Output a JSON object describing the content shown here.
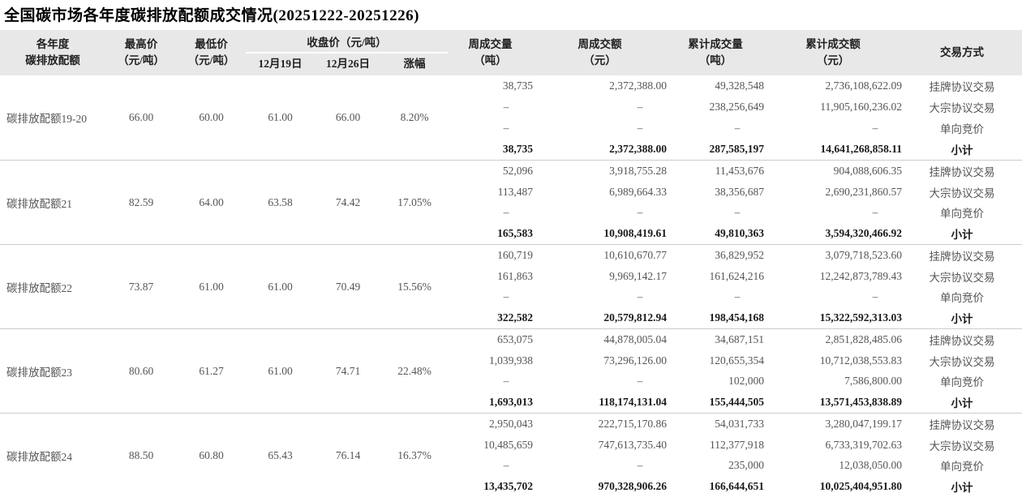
{
  "chart_data": {
    "type": "table",
    "title": "全国碳市场各年度碳排放配额成交情况(20251222-20251226)",
    "header": {
      "allowance": [
        "各年度",
        "碳排放配额"
      ],
      "high": [
        "最高价",
        "（元/吨）"
      ],
      "low": [
        "最低价",
        "（元/吨）"
      ],
      "close_group": "收盘价（元/吨）",
      "date1": "12月19日",
      "date2": "12月26日",
      "change": "涨幅",
      "week_vol": [
        "周成交量",
        "（吨）"
      ],
      "week_amt": [
        "周成交额",
        "（元）"
      ],
      "cum_vol": [
        "累计成交量",
        "（吨）"
      ],
      "cum_amt": [
        "累计成交额",
        "（元）"
      ],
      "method": "交易方式"
    },
    "groups": [
      {
        "name": "碳排放配额19-20",
        "high": "66.00",
        "low": "60.00",
        "close_1219": "61.00",
        "close_1226": "66.00",
        "change": "8.20%",
        "rows": [
          {
            "week_vol": "38,735",
            "week_amt": "2,372,388.00",
            "cum_vol": "49,328,548",
            "cum_amt": "2,736,108,622.09",
            "method": "挂牌协议交易"
          },
          {
            "week_vol": "–",
            "week_amt": "–",
            "cum_vol": "238,256,649",
            "cum_amt": "11,905,160,236.02",
            "method": "大宗协议交易"
          },
          {
            "week_vol": "–",
            "week_amt": "–",
            "cum_vol": "–",
            "cum_amt": "–",
            "method": "单向竞价"
          },
          {
            "week_vol": "38,735",
            "week_amt": "2,372,388.00",
            "cum_vol": "287,585,197",
            "cum_amt": "14,641,268,858.11",
            "method": "小计"
          }
        ]
      },
      {
        "name": "碳排放配额21",
        "high": "82.59",
        "low": "64.00",
        "close_1219": "63.58",
        "close_1226": "74.42",
        "change": "17.05%",
        "rows": [
          {
            "week_vol": "52,096",
            "week_amt": "3,918,755.28",
            "cum_vol": "11,453,676",
            "cum_amt": "904,088,606.35",
            "method": "挂牌协议交易"
          },
          {
            "week_vol": "113,487",
            "week_amt": "6,989,664.33",
            "cum_vol": "38,356,687",
            "cum_amt": "2,690,231,860.57",
            "method": "大宗协议交易"
          },
          {
            "week_vol": "–",
            "week_amt": "–",
            "cum_vol": "–",
            "cum_amt": "–",
            "method": "单向竞价"
          },
          {
            "week_vol": "165,583",
            "week_amt": "10,908,419.61",
            "cum_vol": "49,810,363",
            "cum_amt": "3,594,320,466.92",
            "method": "小计"
          }
        ]
      },
      {
        "name": "碳排放配额22",
        "high": "73.87",
        "low": "61.00",
        "close_1219": "61.00",
        "close_1226": "70.49",
        "change": "15.56%",
        "rows": [
          {
            "week_vol": "160,719",
            "week_amt": "10,610,670.77",
            "cum_vol": "36,829,952",
            "cum_amt": "3,079,718,523.60",
            "method": "挂牌协议交易"
          },
          {
            "week_vol": "161,863",
            "week_amt": "9,969,142.17",
            "cum_vol": "161,624,216",
            "cum_amt": "12,242,873,789.43",
            "method": "大宗协议交易"
          },
          {
            "week_vol": "–",
            "week_amt": "–",
            "cum_vol": "–",
            "cum_amt": "–",
            "method": "单向竞价"
          },
          {
            "week_vol": "322,582",
            "week_amt": "20,579,812.94",
            "cum_vol": "198,454,168",
            "cum_amt": "15,322,592,313.03",
            "method": "小计"
          }
        ]
      },
      {
        "name": "碳排放配额23",
        "high": "80.60",
        "low": "61.27",
        "close_1219": "61.00",
        "close_1226": "74.71",
        "change": "22.48%",
        "rows": [
          {
            "week_vol": "653,075",
            "week_amt": "44,878,005.04",
            "cum_vol": "34,687,151",
            "cum_amt": "2,851,828,485.06",
            "method": "挂牌协议交易"
          },
          {
            "week_vol": "1,039,938",
            "week_amt": "73,296,126.00",
            "cum_vol": "120,655,354",
            "cum_amt": "10,712,038,553.83",
            "method": "大宗协议交易"
          },
          {
            "week_vol": "–",
            "week_amt": "–",
            "cum_vol": "102,000",
            "cum_amt": "7,586,800.00",
            "method": "单向竞价"
          },
          {
            "week_vol": "1,693,013",
            "week_amt": "118,174,131.04",
            "cum_vol": "155,444,505",
            "cum_amt": "13,571,453,838.89",
            "method": "小计"
          }
        ]
      },
      {
        "name": "碳排放配额24",
        "high": "88.50",
        "low": "60.80",
        "close_1219": "65.43",
        "close_1226": "76.14",
        "change": "16.37%",
        "rows": [
          {
            "week_vol": "2,950,043",
            "week_amt": "222,715,170.86",
            "cum_vol": "54,031,733",
            "cum_amt": "3,280,047,199.17",
            "method": "挂牌协议交易"
          },
          {
            "week_vol": "10,485,659",
            "week_amt": "747,613,735.40",
            "cum_vol": "112,377,918",
            "cum_amt": "6,733,319,702.63",
            "method": "大宗协议交易"
          },
          {
            "week_vol": "–",
            "week_amt": "–",
            "cum_vol": "235,000",
            "cum_amt": "12,038,050.00",
            "method": "单向竞价"
          },
          {
            "week_vol": "13,435,702",
            "week_amt": "970,328,906.26",
            "cum_vol": "166,644,651",
            "cum_amt": "10,025,404,951.80",
            "method": "小计"
          }
        ]
      }
    ]
  }
}
